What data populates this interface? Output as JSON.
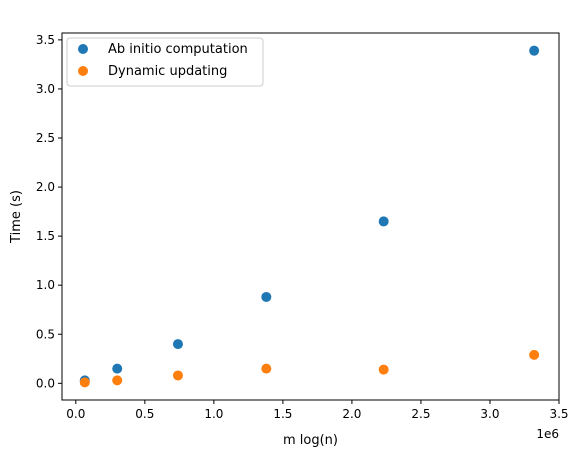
{
  "chart_data": {
    "type": "scatter",
    "xlabel": "m log(n)",
    "ylabel": "Time (s)",
    "x_offset_label": "1e6",
    "xlim": [
      -0.1,
      3.5
    ],
    "ylim": [
      -0.17,
      3.57
    ],
    "xticks": [
      0.0,
      0.5,
      1.0,
      1.5,
      2.0,
      2.5,
      3.0,
      3.5
    ],
    "xtick_labels": [
      "0.0",
      "0.5",
      "1.0",
      "1.5",
      "2.0",
      "2.5",
      "3.0",
      "3.5"
    ],
    "yticks": [
      0.0,
      0.5,
      1.0,
      1.5,
      2.0,
      2.5,
      3.0,
      3.5
    ],
    "ytick_labels": [
      "0.0",
      "0.5",
      "1.0",
      "1.5",
      "2.0",
      "2.5",
      "3.0",
      "3.5"
    ],
    "grid": false,
    "legend_position": "top-left",
    "series": [
      {
        "name": "Ab initio computation",
        "color": "#1f77b4",
        "points": [
          {
            "x": 0.065,
            "y": 0.03
          },
          {
            "x": 0.3,
            "y": 0.15
          },
          {
            "x": 0.74,
            "y": 0.4
          },
          {
            "x": 1.38,
            "y": 0.88
          },
          {
            "x": 2.23,
            "y": 1.65
          },
          {
            "x": 3.32,
            "y": 3.39
          }
        ]
      },
      {
        "name": "Dynamic updating",
        "color": "#ff7f0e",
        "points": [
          {
            "x": 0.065,
            "y": 0.01
          },
          {
            "x": 0.3,
            "y": 0.03
          },
          {
            "x": 0.74,
            "y": 0.08
          },
          {
            "x": 1.38,
            "y": 0.15
          },
          {
            "x": 2.23,
            "y": 0.14
          },
          {
            "x": 3.32,
            "y": 0.29
          }
        ]
      }
    ]
  }
}
